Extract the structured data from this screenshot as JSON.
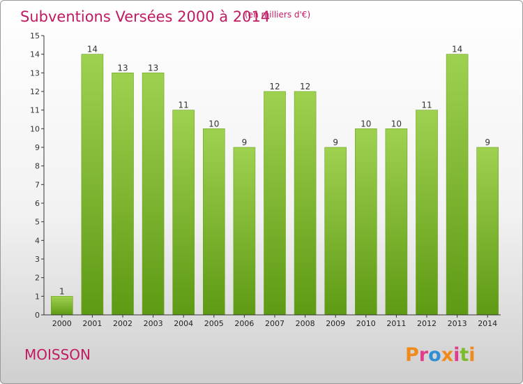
{
  "colors": {
    "title": "#c01a63",
    "bar_top": "#9fd150",
    "bar_bottom": "#5e9a14",
    "logo_letters": [
      "#f08a1c",
      "#e23b8c",
      "#2f8fd6",
      "#f08a1c",
      "#e23b8c",
      "#7dbb2a"
    ]
  },
  "chart_data": {
    "type": "bar",
    "title": "Subventions Versées 2000 à 2014",
    "unit_note": "(en milliers d'€)",
    "categories": [
      "2000",
      "2001",
      "2002",
      "2003",
      "2004",
      "2005",
      "2006",
      "2007",
      "2008",
      "2009",
      "2010",
      "2011",
      "2012",
      "2013",
      "2014"
    ],
    "values": [
      1,
      14,
      13,
      13,
      11,
      10,
      9,
      12,
      12,
      9,
      10,
      10,
      11,
      14,
      9
    ],
    "ylim": [
      0,
      15
    ],
    "yticks": [
      0,
      1,
      2,
      3,
      4,
      5,
      6,
      7,
      8,
      9,
      10,
      11,
      12,
      13,
      14,
      15
    ],
    "grid": false
  },
  "commune": "MOISSON",
  "logo": {
    "text": "Proxiti",
    "icon": "proxiti-logo"
  }
}
